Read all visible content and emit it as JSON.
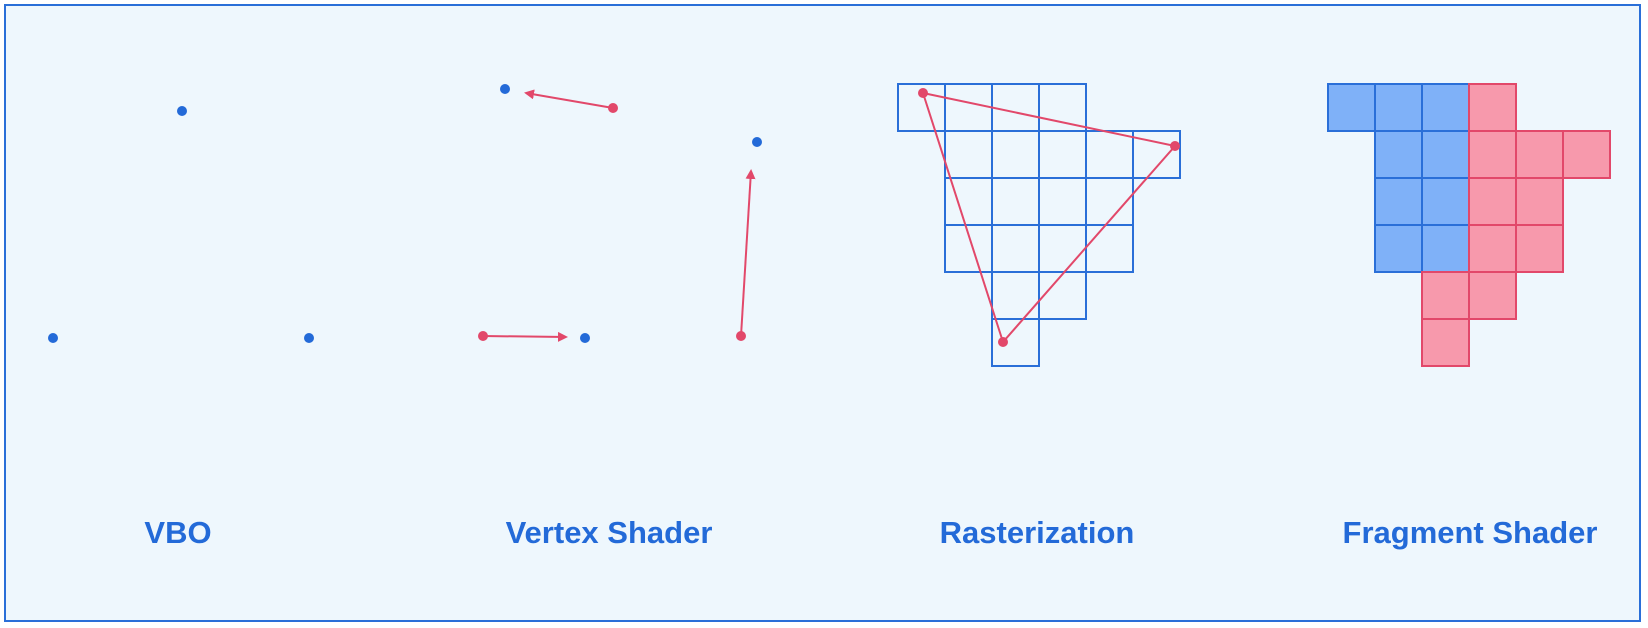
{
  "panels": [
    {
      "label": "VBO"
    },
    {
      "label": "Vertex Shader"
    },
    {
      "label": "Rasterization"
    },
    {
      "label": "Fragment Shader"
    }
  ],
  "colors": {
    "background": "#eef7fd",
    "border": "#2a6fd8",
    "blue": "#236ad8",
    "red": "#e2486a",
    "blue_fill": "#7fb1f8",
    "pink_fill": "#f799ac",
    "blue_stroke": "#2a6fd8",
    "pink_stroke": "#e2486a"
  }
}
